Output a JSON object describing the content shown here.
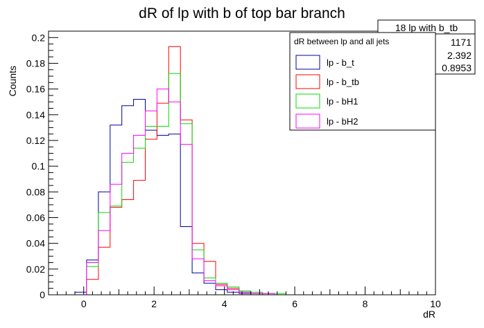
{
  "chart_data": {
    "type": "histogram",
    "title": "dR of lp with b of top bar branch",
    "xlabel": "dR",
    "ylabel": "Counts",
    "xlim": [
      -1,
      10
    ],
    "ylim": [
      0,
      0.205
    ],
    "x_ticks": [
      0,
      2,
      4,
      6,
      8,
      10
    ],
    "y_ticks": [
      0,
      0.02,
      0.04,
      0.06,
      0.08,
      0.1,
      0.12,
      0.14,
      0.16,
      0.18,
      0.2
    ],
    "y_tick_labels": [
      "0",
      "0.02",
      "0.04",
      "0.06",
      "0.08",
      "0.1",
      "0.12",
      "0.14",
      "0.16",
      "0.18",
      "0.2"
    ],
    "grid": false,
    "bin_edges": [
      -0.25,
      0.083,
      0.417,
      0.75,
      1.083,
      1.417,
      1.75,
      2.083,
      2.417,
      2.75,
      3.083,
      3.417,
      3.75,
      4.083,
      4.417,
      4.75,
      5.083,
      5.417,
      5.75,
      6.083
    ],
    "series": [
      {
        "name": "lp - b_t",
        "color": "#000099",
        "values": [
          0.002,
          0.027,
          0.08,
          0.132,
          0.147,
          0.152,
          0.128,
          0.124,
          0.125,
          0.053,
          0.017,
          0.009,
          0.004,
          0.002,
          0.001,
          0.001,
          0,
          0,
          0
        ]
      },
      {
        "name": "lp - b_tb",
        "color": "#ff0000",
        "values": [
          0,
          0.012,
          0.037,
          0.068,
          0.074,
          0.089,
          0.121,
          0.149,
          0.193,
          0.136,
          0.04,
          0.026,
          0.008,
          0.005,
          0.002,
          0.001,
          0.001,
          0,
          0
        ]
      },
      {
        "name": "lp - bH1",
        "color": "#00dd00",
        "values": [
          0,
          0.022,
          0.064,
          0.069,
          0.103,
          0.114,
          0.131,
          0.131,
          0.172,
          0.133,
          0.035,
          0.013,
          0.009,
          0.006,
          0.003,
          0.002,
          0.001,
          0.001,
          0
        ]
      },
      {
        "name": "lp - bH2",
        "color": "#ff00ff",
        "values": [
          0,
          0.025,
          0.05,
          0.086,
          0.11,
          0.124,
          0.143,
          0.16,
          0.15,
          0.117,
          0.028,
          0.011,
          0.007,
          0.004,
          0.002,
          0.001,
          0.001,
          0,
          0
        ]
      }
    ],
    "legend": {
      "header": "dR between lp and all jets",
      "position": "top-right"
    },
    "stats": {
      "name": "18 lp with b_tb",
      "values": [
        "1171",
        "2.392",
        "0.8953"
      ]
    }
  }
}
